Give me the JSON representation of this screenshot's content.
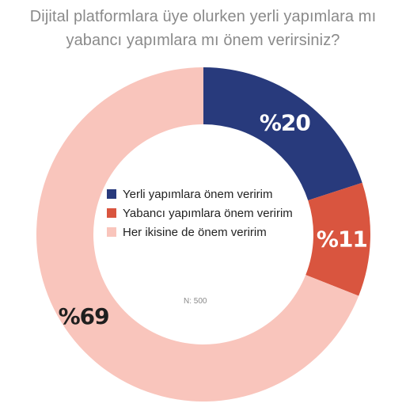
{
  "chart_data": {
    "type": "donut",
    "title_lines": [
      "Dijital platformlara üye olurken yerli yapımlara mı",
      "yabancı yapımlara mı önem verirsiniz?"
    ],
    "slices": [
      {
        "name": "Yerli yapımlara önem veririm",
        "value": 20,
        "label": "%20",
        "color": "#283a7c",
        "label_color": "#ffffff"
      },
      {
        "name": "Yabancı yapımlara önem veririm",
        "value": 11,
        "label": "%11",
        "color": "#d9553f",
        "label_color": "#ffffff"
      },
      {
        "name": "Her ikisine de önem veririm",
        "value": 69,
        "label": "%69",
        "color": "#f9c5bc",
        "label_color": "#1f1f1f"
      }
    ],
    "legend_placement": "center",
    "note": "N: 500"
  }
}
